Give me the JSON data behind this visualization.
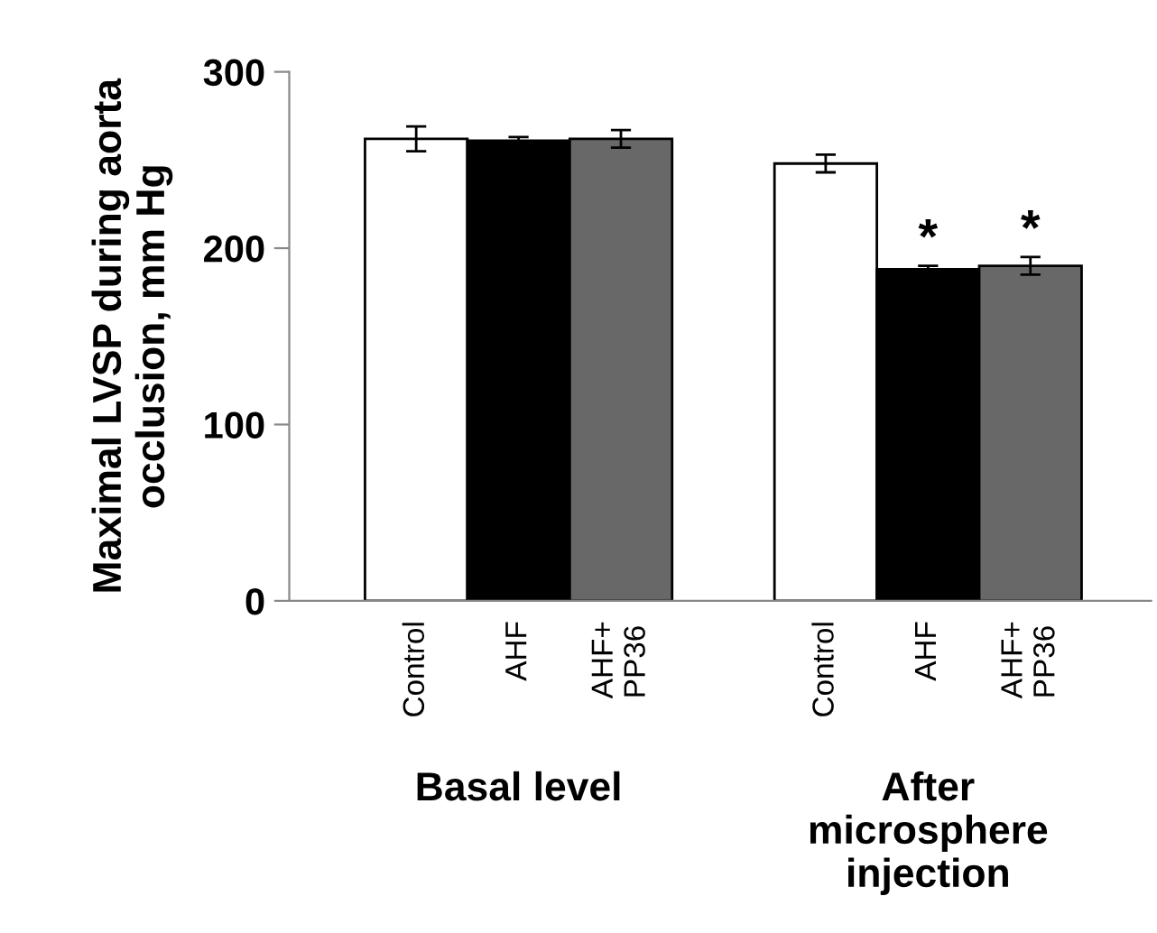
{
  "chart_data": {
    "type": "bar",
    "ylabel": "Maximal LVSP during aorta\nocclusion, mm Hg",
    "categories": [
      "Control",
      "AHF",
      "AHF+\nPP36",
      null,
      "Control",
      "AHF",
      "AHF+\nPP36"
    ],
    "values": [
      262,
      261,
      262,
      null,
      248,
      188,
      190
    ],
    "errors": [
      7,
      2,
      5,
      null,
      5,
      2,
      5
    ],
    "colors": [
      "#ffffff",
      "#000000",
      "#686868",
      null,
      "#ffffff",
      "#000000",
      "#686868"
    ],
    "value_labels": [
      null,
      null,
      null,
      null,
      null,
      "*",
      "*"
    ],
    "annotations": [
      "Basal level",
      "After\nmicrosphere\ninjection"
    ],
    "ylim": [
      0,
      300
    ],
    "yticks": [
      0,
      100,
      200,
      300
    ],
    "grid": false,
    "legend": false
  }
}
